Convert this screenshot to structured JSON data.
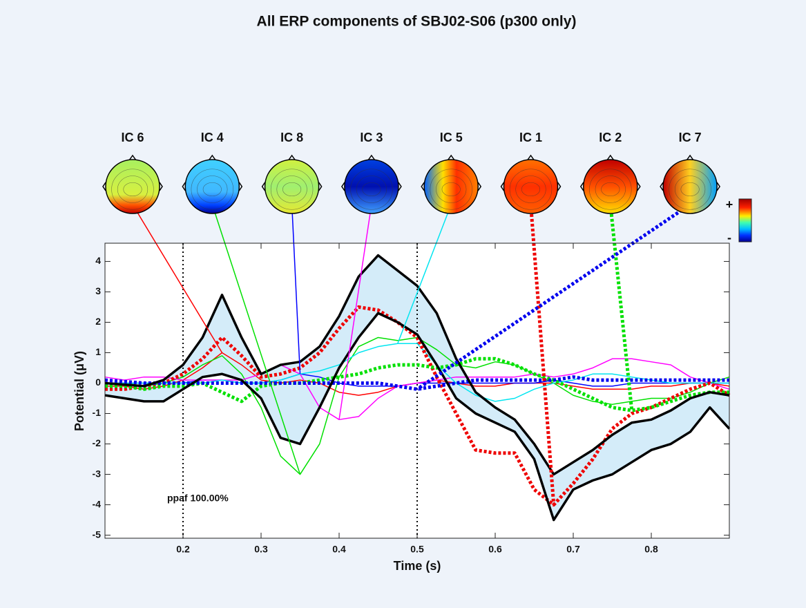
{
  "chart_data": {
    "type": "line",
    "title": "All ERP components of SBJ02-S06 (p300 only)",
    "x_label": "Time (s)",
    "y_label": "Potential (μV)",
    "annotation": "ppaf 100.00%",
    "colorbar_labels": [
      "+",
      "-"
    ],
    "xlim": [
      0.1,
      0.9
    ],
    "ylim": [
      -5.1,
      4.6
    ],
    "xticks": [
      0.2,
      0.3,
      0.4,
      0.5,
      0.6,
      0.7,
      0.8
    ],
    "yticks": [
      -5,
      -4,
      -3,
      -2,
      -1,
      0,
      1,
      2,
      3,
      4
    ],
    "markers": [
      0.2,
      0.5
    ],
    "x": [
      0.1,
      0.125,
      0.15,
      0.175,
      0.2,
      0.225,
      0.25,
      0.275,
      0.3,
      0.325,
      0.35,
      0.375,
      0.4,
      0.425,
      0.45,
      0.475,
      0.5,
      0.525,
      0.55,
      0.575,
      0.6,
      0.625,
      0.65,
      0.675,
      0.7,
      0.725,
      0.75,
      0.775,
      0.8,
      0.825,
      0.85,
      0.875,
      0.9
    ],
    "envelope": {
      "color": "#000000",
      "fill": "#d4ecf9",
      "upper": [
        0,
        -0.05,
        -0.1,
        0.1,
        0.6,
        1.5,
        2.9,
        1.5,
        0.3,
        0.6,
        0.7,
        1.2,
        2.2,
        3.5,
        4.2,
        3.7,
        3.2,
        2.3,
        0.8,
        -0.3,
        -0.8,
        -1.2,
        -2.0,
        -3.0,
        -2.6,
        -2.2,
        -1.7,
        -1.3,
        -1.2,
        -0.9,
        -0.5,
        -0.3,
        -0.4
      ],
      "lower": [
        -0.4,
        -0.5,
        -0.6,
        -0.6,
        -0.2,
        0.2,
        0.3,
        0.1,
        -0.5,
        -1.8,
        -2.0,
        -0.8,
        0.5,
        1.5,
        2.3,
        2.0,
        1.6,
        0.6,
        -0.5,
        -1.0,
        -1.3,
        -1.6,
        -2.5,
        -4.5,
        -3.5,
        -3.2,
        -3.0,
        -2.6,
        -2.2,
        -2.0,
        -1.6,
        -0.8,
        -1.5
      ]
    },
    "series": [
      {
        "name": "IC 6",
        "color": "#ff0000",
        "dashed": false,
        "values": [
          -0.1,
          -0.1,
          -0.2,
          -0.1,
          0.1,
          0.5,
          1.0,
          0.6,
          0.1,
          0,
          0.1,
          0,
          -0.3,
          -0.4,
          -0.3,
          -0.1,
          0,
          0.1,
          0,
          -0.1,
          -0.1,
          0,
          0,
          0,
          -0.1,
          -0.2,
          -0.2,
          -0.2,
          -0.1,
          -0.1,
          0,
          0,
          -0.1
        ]
      },
      {
        "name": "IC 4",
        "color": "#00e000",
        "dashed": false,
        "values": [
          0,
          0,
          -0.1,
          0,
          0.2,
          0.6,
          0.9,
          0.3,
          -0.8,
          -2.4,
          -3.0,
          -2.0,
          0.2,
          1.2,
          1.5,
          1.4,
          1.5,
          1.1,
          0.6,
          0.5,
          0.7,
          0.6,
          0.3,
          0,
          -0.4,
          -0.6,
          -0.7,
          -0.6,
          -0.5,
          -0.5,
          -0.3,
          0,
          0.2
        ]
      },
      {
        "name": "IC 8",
        "color": "#0000ff",
        "dashed": false,
        "values": [
          0,
          0,
          0,
          0,
          0,
          0.1,
          0.1,
          0,
          0,
          0.1,
          0.3,
          0.2,
          0,
          -0.1,
          -0.1,
          -0.1,
          0,
          0,
          0,
          0,
          0,
          0,
          0,
          0.1,
          0,
          -0.1,
          -0.1,
          0,
          0,
          0,
          0,
          0,
          0
        ]
      },
      {
        "name": "IC 3",
        "color": "#ff00ff",
        "dashed": false,
        "values": [
          0.2,
          0.1,
          0.2,
          0.2,
          0.1,
          0.1,
          0.1,
          0.1,
          0.3,
          0.6,
          0.3,
          -0.8,
          -1.2,
          -1.1,
          -0.5,
          -0.1,
          0,
          0.1,
          0.2,
          0.2,
          0.2,
          0.2,
          0.3,
          0.2,
          0.3,
          0.5,
          0.8,
          0.8,
          0.7,
          0.6,
          0.2,
          0,
          -0.2
        ]
      },
      {
        "name": "IC 5",
        "color": "#00e5f0",
        "dashed": false,
        "values": [
          0,
          0,
          0,
          0,
          0,
          0,
          0.1,
          0,
          0,
          0.1,
          0.3,
          0.4,
          0.6,
          1.0,
          1.2,
          1.3,
          1.3,
          0.6,
          0,
          -0.4,
          -0.6,
          -0.5,
          -0.2,
          0,
          0.1,
          0.3,
          0.3,
          0.2,
          0.1,
          0,
          0,
          0,
          0
        ]
      },
      {
        "name": "IC 1",
        "color": "#ee0000",
        "dashed": true,
        "values": [
          -0.2,
          -0.2,
          -0.1,
          0,
          0.3,
          0.8,
          1.5,
          0.9,
          0.2,
          0.3,
          0.5,
          1.0,
          1.8,
          2.5,
          2.4,
          2.0,
          1.5,
          0.2,
          -1.0,
          -2.2,
          -2.3,
          -2.3,
          -3.5,
          -4.0,
          -3.3,
          -2.5,
          -1.5,
          -1.0,
          -0.8,
          -0.5,
          -0.2,
          0,
          -0.4
        ]
      },
      {
        "name": "IC 2",
        "color": "#00e000",
        "dashed": true,
        "values": [
          -0.1,
          -0.1,
          -0.2,
          -0.1,
          -0.1,
          0,
          -0.3,
          -0.6,
          -0.1,
          0,
          0,
          0.1,
          0.2,
          0.3,
          0.5,
          0.6,
          0.6,
          0.5,
          0.6,
          0.8,
          0.8,
          0.6,
          0.3,
          0.1,
          -0.2,
          -0.5,
          -0.8,
          -0.9,
          -0.8,
          -0.6,
          -0.4,
          -0.3,
          -0.3
        ]
      },
      {
        "name": "IC 7",
        "color": "#0000ee",
        "dashed": true,
        "values": [
          0.1,
          0.05,
          0,
          0,
          0,
          0,
          0,
          0,
          0,
          0,
          0,
          0,
          0,
          0,
          0,
          -0.1,
          -0.2,
          -0.1,
          0,
          0.1,
          0.1,
          0.1,
          0.1,
          0.1,
          0.2,
          0.1,
          0.1,
          0.1,
          0.1,
          0.1,
          0.1,
          0.1,
          0.1
        ]
      }
    ]
  }
}
